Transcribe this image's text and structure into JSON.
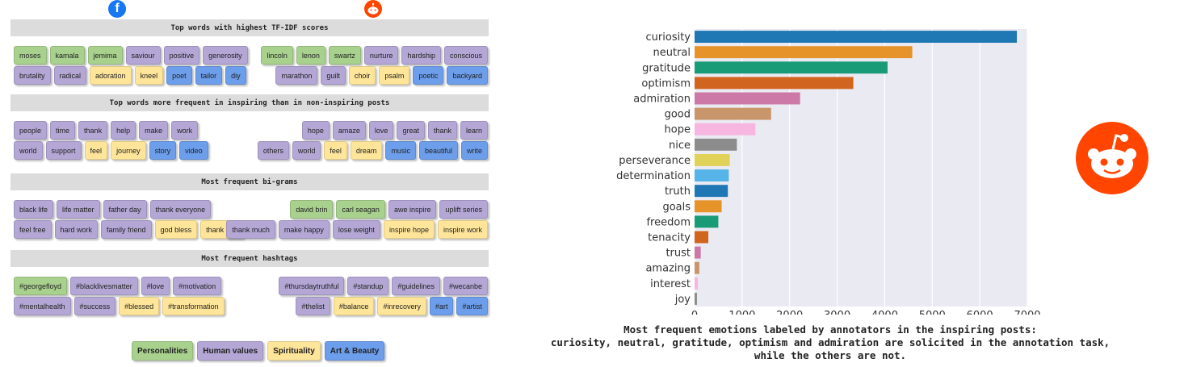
{
  "sections": [
    {
      "title": "Top words with highest TF-IDF scores",
      "fb_rows": [
        [
          [
            "moses",
            "pers"
          ],
          [
            "kamala",
            "pers"
          ],
          [
            "jemima",
            "pers"
          ],
          [
            "saviour",
            "hum"
          ],
          [
            "positive",
            "hum"
          ],
          [
            "generosity",
            "hum"
          ]
        ],
        [
          [
            "brutality",
            "hum"
          ],
          [
            "radical",
            "hum"
          ],
          [
            "adoration",
            "spi"
          ],
          [
            "kneel",
            "spi"
          ],
          [
            "poet",
            "art"
          ],
          [
            "tailor",
            "art"
          ],
          [
            "diy",
            "art"
          ]
        ]
      ],
      "rd_rows": [
        [
          [
            "lincoln",
            "pers"
          ],
          [
            "lenon",
            "pers"
          ],
          [
            "swartz",
            "pers"
          ],
          [
            "nurture",
            "hum"
          ],
          [
            "hardship",
            "hum"
          ],
          [
            "conscious",
            "hum"
          ]
        ],
        [
          [
            "marathon",
            "hum"
          ],
          [
            "guilt",
            "hum"
          ],
          [
            "choir",
            "spi"
          ],
          [
            "psalm",
            "spi"
          ],
          [
            "poetic",
            "art"
          ],
          [
            "backyard",
            "art"
          ]
        ]
      ]
    },
    {
      "title": "Top words more frequent in inspiring than in non-inspiring posts",
      "fb_rows": [
        [
          [
            "people",
            "hum"
          ],
          [
            "time",
            "hum"
          ],
          [
            "thank",
            "hum"
          ],
          [
            "help",
            "hum"
          ],
          [
            "make",
            "hum"
          ],
          [
            "work",
            "hum"
          ]
        ],
        [
          [
            "world",
            "hum"
          ],
          [
            "support",
            "hum"
          ],
          [
            "feel",
            "spi"
          ],
          [
            "journey",
            "spi"
          ],
          [
            "story",
            "art"
          ],
          [
            "video",
            "art"
          ]
        ]
      ],
      "rd_rows": [
        [
          [
            "hope",
            "hum"
          ],
          [
            "amaze",
            "hum"
          ],
          [
            "love",
            "hum"
          ],
          [
            "great",
            "hum"
          ],
          [
            "thank",
            "hum"
          ],
          [
            "learn",
            "hum"
          ]
        ],
        [
          [
            "others",
            "hum"
          ],
          [
            "world",
            "hum"
          ],
          [
            "feel",
            "spi"
          ],
          [
            "dream",
            "spi"
          ],
          [
            "music",
            "art"
          ],
          [
            "beautiful",
            "art"
          ],
          [
            "write",
            "art"
          ]
        ]
      ]
    },
    {
      "title": "Most frequent bi-grams",
      "fb_rows": [
        [
          [
            "black life",
            "hum"
          ],
          [
            "life matter",
            "hum"
          ],
          [
            "father day",
            "hum"
          ],
          [
            "thank everyone",
            "hum"
          ]
        ],
        [
          [
            "feel free",
            "hum"
          ],
          [
            "hard work",
            "hum"
          ],
          [
            "family friend",
            "hum"
          ],
          [
            "god bless",
            "spi"
          ],
          [
            "thank god",
            "spi"
          ]
        ]
      ],
      "rd_rows": [
        [
          [
            "david brin",
            "pers"
          ],
          [
            "carl seagan",
            "pers"
          ],
          [
            "awe inspire",
            "hum"
          ],
          [
            "uplift series",
            "hum"
          ]
        ],
        [
          [
            "thank much",
            "hum"
          ],
          [
            "make happy",
            "hum"
          ],
          [
            "lose weight",
            "hum"
          ],
          [
            "inspire hope",
            "spi"
          ],
          [
            "inspire work",
            "spi"
          ]
        ]
      ]
    },
    {
      "title": "Most frequent hashtags",
      "fb_rows": [
        [
          [
            "#georgefloyd",
            "pers"
          ],
          [
            "#blacklivesmatter",
            "hum"
          ],
          [
            "#love",
            "hum"
          ],
          [
            "#motivation",
            "hum"
          ]
        ],
        [
          [
            "#mentalhealth",
            "hum"
          ],
          [
            "#success",
            "hum"
          ],
          [
            "#blessed",
            "spi"
          ],
          [
            "#transformation",
            "spi"
          ]
        ]
      ],
      "rd_rows": [
        [
          [
            "#thursdaytruthful",
            "hum"
          ],
          [
            "#standup",
            "hum"
          ],
          [
            "#guidelines",
            "hum"
          ],
          [
            "#wecanbe",
            "hum"
          ]
        ],
        [
          [
            "#thelist",
            "hum"
          ],
          [
            "#balance",
            "spi"
          ],
          [
            "#inrecovery",
            "spi"
          ],
          [
            "#art",
            "art"
          ],
          [
            "#artist",
            "art"
          ]
        ]
      ]
    }
  ],
  "legend": [
    {
      "label": "Personalities",
      "cat": "pers"
    },
    {
      "label": "Human values",
      "cat": "hum"
    },
    {
      "label": "Spirituality",
      "cat": "spi"
    },
    {
      "label": "Art & Beauty",
      "cat": "art"
    }
  ],
  "icons": {
    "facebook": "facebook-icon",
    "reddit": "reddit-icon"
  },
  "chart_data": {
    "type": "bar",
    "orientation": "horizontal",
    "categories": [
      "curiosity",
      "neutral",
      "gratitude",
      "optimism",
      "admiration",
      "good",
      "hope",
      "nice",
      "perseverance",
      "determination",
      "truth",
      "goals",
      "freedom",
      "tenacity",
      "trust",
      "amazing",
      "interest",
      "joy"
    ],
    "values": [
      6780,
      4580,
      4060,
      3340,
      2220,
      1610,
      1280,
      890,
      740,
      720,
      700,
      570,
      500,
      290,
      130,
      100,
      70,
      50
    ],
    "colors": [
      "#1f77b4",
      "#e6932a",
      "#1a9b77",
      "#d1651f",
      "#cc79a7",
      "#c9956b",
      "#f7b6e0",
      "#8c8c8c",
      "#e0d259",
      "#56b4e9",
      "#1f77b4",
      "#e6932a",
      "#1a9b77",
      "#d1651f",
      "#cc79a7",
      "#c9956b",
      "#f7b6e0",
      "#8c8c8c"
    ],
    "xlim": [
      0,
      7000
    ],
    "xticks": [
      0,
      1000,
      2000,
      3000,
      4000,
      5000,
      6000,
      7000
    ],
    "grid": true,
    "caption_lines": [
      "Most frequent emotions labeled by annotators in the inspiring posts:",
      "curiosity, neutral, gratitude, optimism  and admiration are solicited in the annotation task,",
      "while the others are not."
    ]
  }
}
